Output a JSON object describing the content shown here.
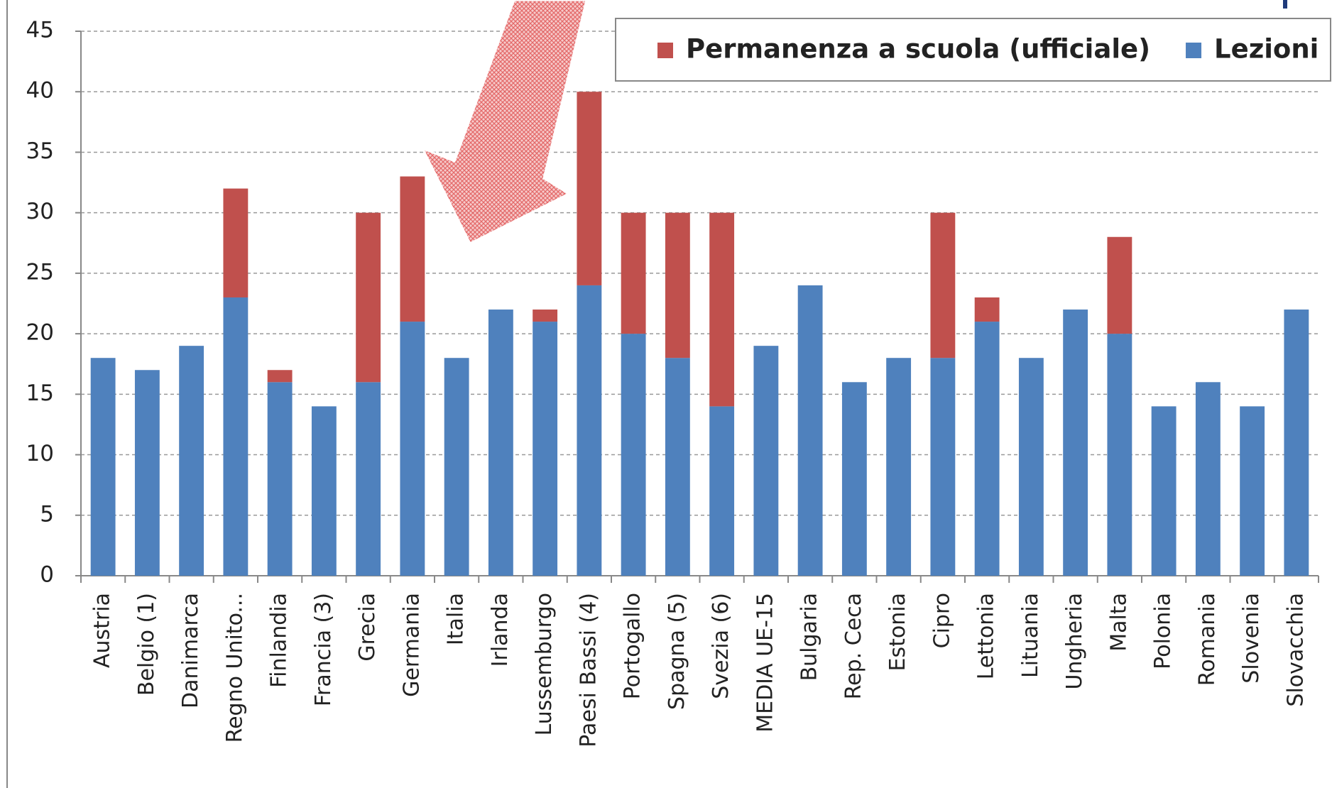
{
  "chart_data": {
    "type": "bar",
    "stacked": true,
    "categories": [
      "Austria",
      "Belgio (1)",
      "Danimarca",
      "Regno Unito...",
      "Finlandia",
      "Francia (3)",
      "Grecia",
      "Germania",
      "Italia",
      "Irlanda",
      "Lussemburgo",
      "Paesi Bassi (4)",
      "Portogallo",
      "Spagna (5)",
      "Svezia (6)",
      "MEDIA UE-15",
      "Bulgaria",
      "Rep. Ceca",
      "Estonia",
      "Cipro",
      "Lettonia",
      "Lituania",
      "Ungheria",
      "Malta",
      "Polonia",
      "Romania",
      "Slovenia",
      "Slovacchia"
    ],
    "series": [
      {
        "name": "Lezioni",
        "color": "#4f81bd",
        "values": [
          18,
          17,
          19,
          23,
          16,
          14,
          16,
          21,
          18,
          22,
          21,
          24,
          20,
          18,
          14,
          19,
          24,
          16,
          18,
          18,
          21,
          18,
          22,
          20,
          14,
          16,
          14,
          22
        ]
      },
      {
        "name": "Permanenza a scuola (ufficiale)",
        "color": "#c0504d",
        "values": [
          null,
          null,
          null,
          9,
          1,
          null,
          14,
          12,
          null,
          null,
          1,
          16,
          10,
          12,
          16,
          null,
          null,
          null,
          null,
          12,
          2,
          null,
          null,
          8,
          null,
          null,
          null,
          null
        ]
      }
    ],
    "legend_order": [
      1,
      0
    ],
    "ylim": [
      0,
      45
    ],
    "yticks": [
      0,
      5,
      10,
      15,
      20,
      25,
      30,
      35,
      40,
      45
    ],
    "grid": true,
    "legend": "top-right"
  }
}
